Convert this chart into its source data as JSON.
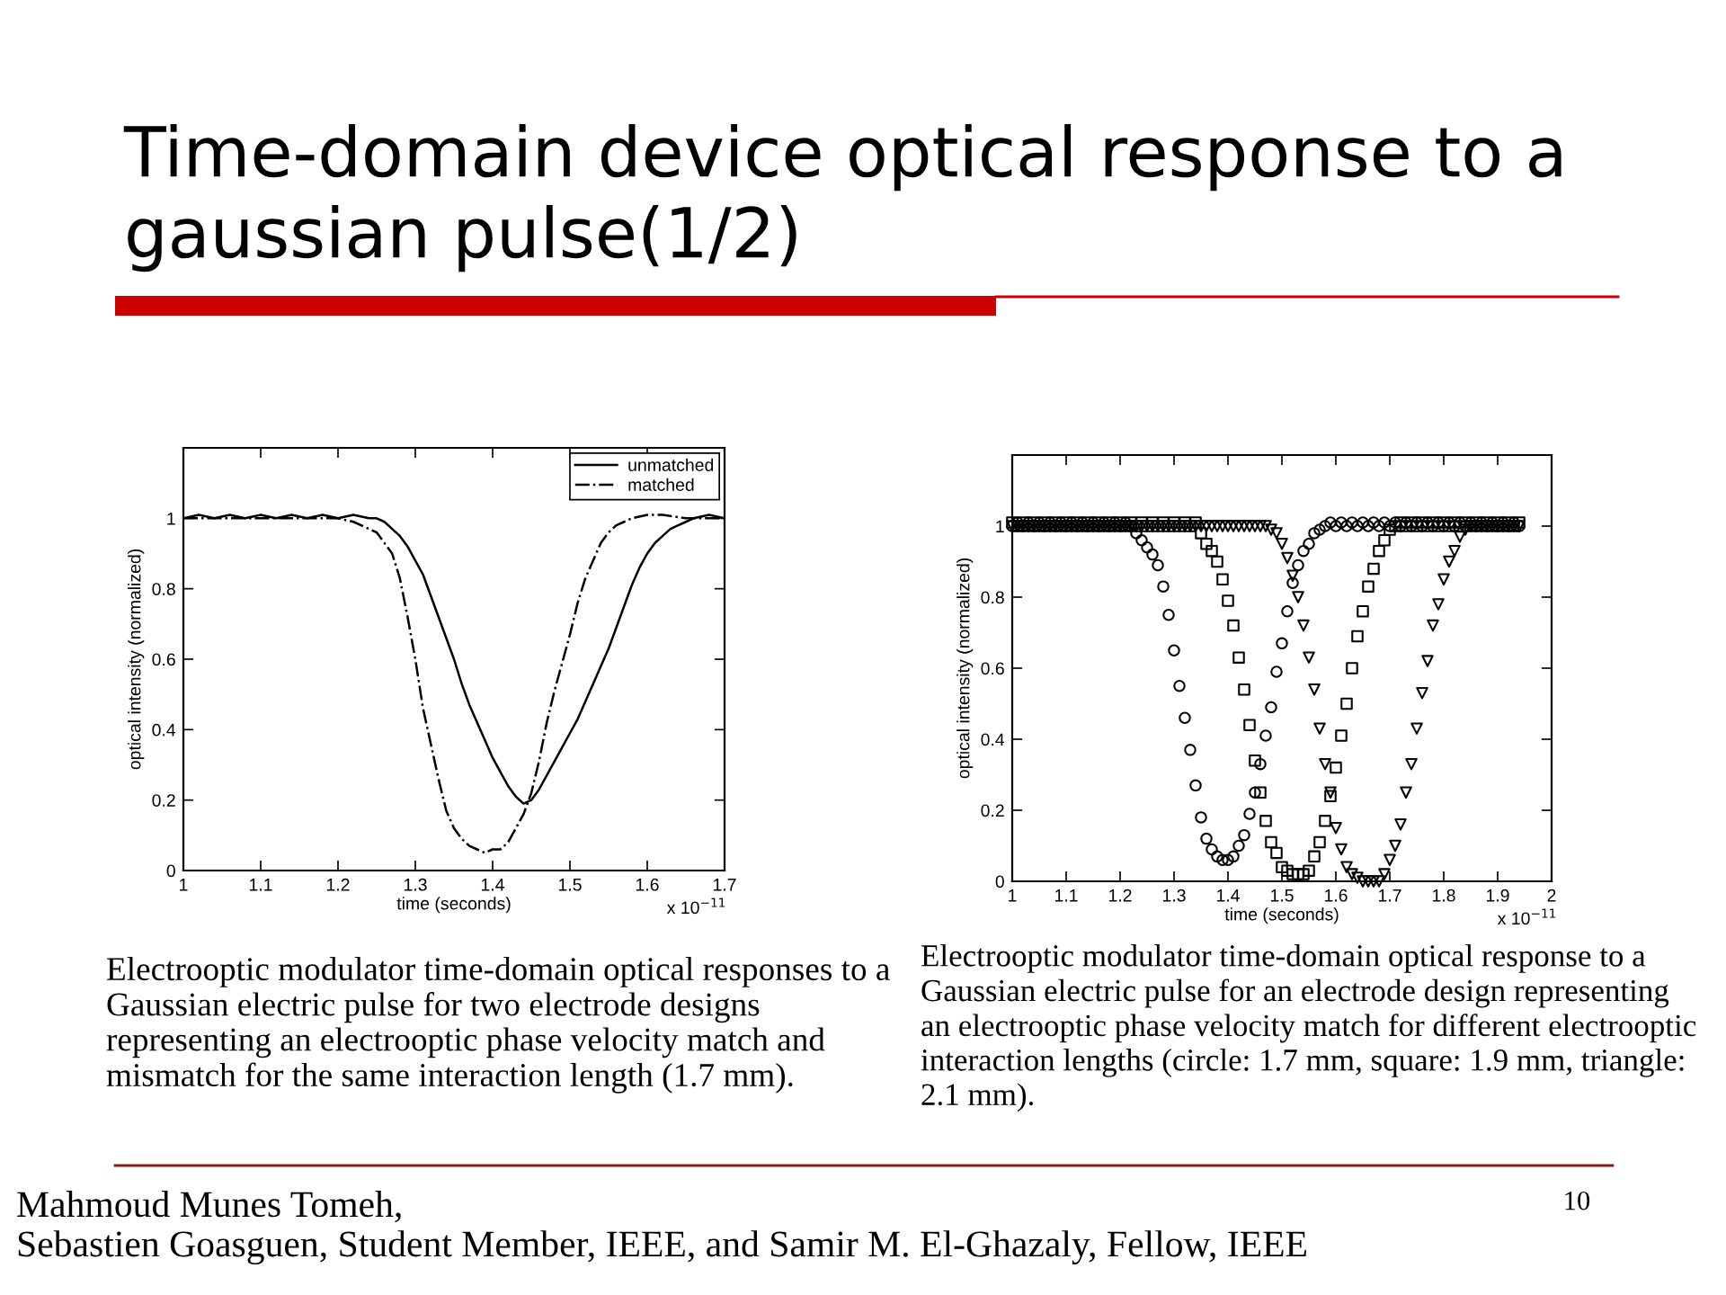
{
  "chart_data": [
    {
      "type": "line",
      "title": "Time-domain device optical response to a gaussian pulse(1/2)",
      "xlabel": "time (seconds)",
      "ylabel": "optical intensity (normalized)",
      "xlim": [
        1,
        1.7
      ],
      "ylim": [
        0,
        1.2
      ],
      "xticks": [
        1,
        1.1,
        1.2,
        1.3,
        1.4,
        1.5,
        1.6,
        1.7
      ],
      "yticks": [
        0,
        0.2,
        0.4,
        0.6,
        0.8,
        1
      ],
      "legend": "top right",
      "series": [
        {
          "name": "unmatched",
          "color": "#000000",
          "line_style": "solid",
          "x": [
            1,
            1.02,
            1.04,
            1.06,
            1.08,
            1.1,
            1.12,
            1.14,
            1.16,
            1.18,
            1.2,
            1.22,
            1.24,
            1.25,
            1.26,
            1.27,
            1.28,
            1.29,
            1.3,
            1.31,
            1.32,
            1.33,
            1.34,
            1.35,
            1.36,
            1.37,
            1.38,
            1.39,
            1.4,
            1.41,
            1.42,
            1.43,
            1.44,
            1.45,
            1.46,
            1.47,
            1.48,
            1.49,
            1.5,
            1.51,
            1.52,
            1.53,
            1.54,
            1.55,
            1.56,
            1.57,
            1.58,
            1.59,
            1.6,
            1.61,
            1.62,
            1.63,
            1.64,
            1.65,
            1.66,
            1.68,
            1.7
          ],
          "values": [
            1,
            1.01,
            1,
            1.01,
            1,
            1.01,
            1,
            1.01,
            1,
            1.01,
            1,
            1.01,
            1,
            1,
            0.99,
            0.97,
            0.95,
            0.92,
            0.88,
            0.84,
            0.78,
            0.72,
            0.66,
            0.6,
            0.53,
            0.47,
            0.42,
            0.37,
            0.32,
            0.28,
            0.24,
            0.21,
            0.19,
            0.2,
            0.23,
            0.27,
            0.31,
            0.35,
            0.39,
            0.43,
            0.48,
            0.53,
            0.58,
            0.63,
            0.69,
            0.75,
            0.81,
            0.86,
            0.9,
            0.93,
            0.95,
            0.97,
            0.98,
            0.99,
            1,
            1.01,
            1
          ]
        },
        {
          "name": "matched",
          "color": "#000000",
          "line_style": "dashdot",
          "x": [
            1,
            1.05,
            1.1,
            1.15,
            1.2,
            1.22,
            1.24,
            1.25,
            1.26,
            1.27,
            1.28,
            1.29,
            1.3,
            1.31,
            1.32,
            1.33,
            1.34,
            1.35,
            1.36,
            1.37,
            1.38,
            1.39,
            1.4,
            1.41,
            1.42,
            1.43,
            1.44,
            1.45,
            1.46,
            1.47,
            1.48,
            1.49,
            1.5,
            1.51,
            1.52,
            1.53,
            1.54,
            1.55,
            1.56,
            1.57,
            1.58,
            1.6,
            1.62,
            1.65,
            1.7
          ],
          "values": [
            1,
            1,
            1,
            1,
            1,
            0.99,
            0.97,
            0.96,
            0.93,
            0.9,
            0.83,
            0.72,
            0.6,
            0.46,
            0.36,
            0.26,
            0.17,
            0.12,
            0.09,
            0.07,
            0.06,
            0.05,
            0.06,
            0.06,
            0.08,
            0.12,
            0.16,
            0.22,
            0.31,
            0.42,
            0.51,
            0.59,
            0.67,
            0.76,
            0.83,
            0.88,
            0.93,
            0.96,
            0.98,
            0.99,
            1,
            1.01,
            1.01,
            1,
            1
          ]
        }
      ],
      "annotations": [
        "Electrooptic modulator time-domain optical responses to a\nGaussian electric pulse for two electrode designs\nrepresenting an electrooptic phase velocity match and\nmismatch for the same interaction length (1.7 mm).",
        "x 10$^{−11}$"
      ]
    },
    {
      "type": "scatter",
      "xlabel": "time (seconds)",
      "ylabel": "optical intensity (normalized)",
      "xlim": [
        1,
        2
      ],
      "ylim": [
        0,
        1.2
      ],
      "xticks": [
        1,
        1.1,
        1.2,
        1.3,
        1.4,
        1.5,
        1.6,
        1.7,
        1.8,
        1.9,
        2
      ],
      "yticks": [
        0,
        0.2,
        0.4,
        0.6,
        0.8,
        1
      ],
      "x": [
        1,
        1.01,
        1.02,
        1.03,
        1.04,
        1.05,
        1.06,
        1.07,
        1.08,
        1.09,
        1.1,
        1.11,
        1.12,
        1.13,
        1.14,
        1.15,
        1.16,
        1.17,
        1.18,
        1.19,
        1.2,
        1.21,
        1.22,
        1.23,
        1.24,
        1.25,
        1.26,
        1.27,
        1.28,
        1.29,
        1.3,
        1.31,
        1.32,
        1.33,
        1.34,
        1.35,
        1.36,
        1.37,
        1.38,
        1.39,
        1.4,
        1.41,
        1.42,
        1.43,
        1.44,
        1.45,
        1.46,
        1.47,
        1.48,
        1.49,
        1.5,
        1.51,
        1.52,
        1.53,
        1.54,
        1.55,
        1.56,
        1.57,
        1.58,
        1.59,
        1.6,
        1.61,
        1.62,
        1.63,
        1.64,
        1.65,
        1.66,
        1.67,
        1.68,
        1.69,
        1.7,
        1.71,
        1.72,
        1.73,
        1.74,
        1.75,
        1.76,
        1.77,
        1.78,
        1.79,
        1.8,
        1.81,
        1.82,
        1.83,
        1.84,
        1.85,
        1.86,
        1.87,
        1.88,
        1.89,
        1.9,
        1.91,
        1.92,
        1.93,
        1.94
      ],
      "series": [
        {
          "color": "#000000",
          "marker": "circle",
          "values": [
            1,
            1.01,
            1,
            1.01,
            1,
            1.01,
            1,
            1.01,
            1,
            1.01,
            1,
            1.01,
            1,
            1.01,
            1,
            1.01,
            1,
            1.01,
            1,
            1.01,
            1,
            1.01,
            1,
            0.98,
            0.96,
            0.94,
            0.92,
            0.89,
            0.83,
            0.75,
            0.65,
            0.55,
            0.46,
            0.37,
            0.27,
            0.18,
            0.12,
            0.09,
            0.07,
            0.06,
            0.06,
            0.07,
            0.1,
            0.13,
            0.19,
            0.25,
            0.33,
            0.41,
            0.49,
            0.59,
            0.67,
            0.76,
            0.84,
            0.89,
            0.93,
            0.95,
            0.98,
            0.99,
            1,
            1.01,
            1,
            1.01,
            1,
            1.01,
            1,
            1.01,
            1,
            1.01,
            1,
            1.01,
            1,
            1.01,
            1,
            1.01,
            1,
            1.01,
            1,
            1.01,
            1,
            1.01,
            1,
            1.01,
            1,
            1.01,
            1,
            1.01,
            1,
            1.01,
            1,
            1.01,
            1,
            1.01,
            1,
            1.01,
            1
          ]
        },
        {
          "color": "#000000",
          "marker": "square",
          "values": [
            1.01,
            1,
            1.01,
            1,
            1.01,
            1,
            1.01,
            1,
            1.01,
            1,
            1.01,
            1,
            1.01,
            1,
            1.01,
            1,
            1.01,
            1,
            1.01,
            1,
            1.01,
            1,
            1.01,
            1,
            1.01,
            1,
            1.01,
            1,
            1.01,
            1,
            1.01,
            1,
            1.01,
            1,
            1.01,
            0.98,
            0.95,
            0.93,
            0.9,
            0.85,
            0.79,
            0.72,
            0.63,
            0.54,
            0.44,
            0.34,
            0.25,
            0.17,
            0.11,
            0.08,
            0.04,
            0.03,
            0.02,
            0.02,
            0.02,
            0.03,
            0.07,
            0.11,
            0.17,
            0.24,
            0.32,
            0.41,
            0.5,
            0.6,
            0.69,
            0.76,
            0.83,
            0.88,
            0.93,
            0.96,
            0.99,
            1,
            1.01,
            1,
            1.01,
            1,
            1.01,
            1,
            1.01,
            1,
            1.01,
            1,
            1.01,
            1,
            1.01,
            1,
            1.01,
            1,
            1.01,
            1,
            1.01,
            1,
            1.01,
            1,
            1.01
          ]
        },
        {
          "color": "#000000",
          "marker": "triangle",
          "values": [
            1,
            1,
            1,
            1,
            1,
            1,
            1,
            1,
            1,
            1,
            1,
            1,
            1,
            1,
            1,
            1,
            1,
            1,
            1,
            1,
            1,
            1,
            1,
            1,
            1,
            1,
            1,
            1,
            1,
            1,
            1,
            1,
            1,
            1,
            1,
            1,
            1,
            1,
            1,
            1,
            1,
            1,
            1,
            1,
            1,
            1,
            1,
            1,
            0.99,
            0.98,
            0.95,
            0.91,
            0.86,
            0.8,
            0.72,
            0.63,
            0.54,
            0.43,
            0.33,
            0.25,
            0.15,
            0.09,
            0.04,
            0.02,
            0.01,
            0,
            0,
            0,
            0,
            0.02,
            0.06,
            0.1,
            0.16,
            0.25,
            0.33,
            0.43,
            0.53,
            0.62,
            0.72,
            0.78,
            0.85,
            0.9,
            0.93,
            0.97,
            0.99,
            1,
            1,
            1,
            1,
            1,
            1,
            1,
            1,
            1,
            1
          ]
        }
      ],
      "annotations": [
        "Electrooptic modulator time-domain optical response to a\nGaussian electric pulse for an electrode design representing\nan electrooptic phase velocity match for different electrooptic\ninteraction lengths (circle: 1.7 mm, square: 1.9 mm, triangle:\n2.1 mm).",
        "x 10$^{−11}$",
        "Mahmoud Munes Tomeh,\nSebastien Goasguen, Student Member, IEEE, and Samir M. El-Ghazaly, Fellow, IEEE",
        "10"
      ]
    }
  ]
}
